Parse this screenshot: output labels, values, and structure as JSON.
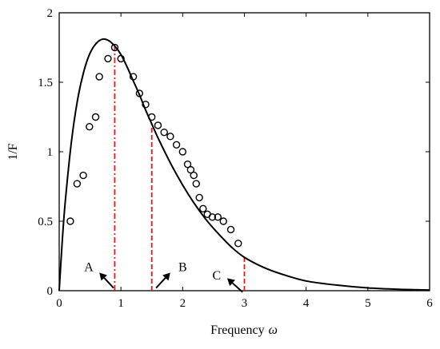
{
  "chart_data": {
    "type": "line",
    "xlabel": "Frequency",
    "xlabel_symbol": "ω",
    "ylabel": "1/F",
    "xlim": [
      0,
      6
    ],
    "ylim": [
      0,
      2
    ],
    "x_ticks": [
      0,
      1,
      2,
      3,
      4,
      5,
      6
    ],
    "x_tick_labels": [
      "0",
      "1",
      "2",
      "3",
      "4",
      "5",
      "6"
    ],
    "y_ticks": [
      0,
      0.5,
      1,
      1.5,
      2
    ],
    "y_tick_labels": [
      "0",
      "0.5",
      "1",
      "1.5",
      "2"
    ],
    "grid": false,
    "series": [
      {
        "style": "solid-line",
        "color": "#000000",
        "x": [
          0,
          0.05,
          0.1,
          0.2,
          0.3,
          0.4,
          0.5,
          0.6,
          0.7,
          0.8,
          0.9,
          1.0,
          1.1,
          1.2,
          1.3,
          1.4,
          1.5,
          1.6,
          1.8,
          2.0,
          2.2,
          2.4,
          2.6,
          2.8,
          3.0,
          3.3,
          3.6,
          4.0,
          4.5,
          5.0,
          5.5,
          6.0
        ],
        "y": [
          0,
          0.36,
          0.65,
          1.08,
          1.38,
          1.58,
          1.71,
          1.78,
          1.81,
          1.8,
          1.76,
          1.7,
          1.61,
          1.51,
          1.41,
          1.3,
          1.2,
          1.1,
          0.92,
          0.76,
          0.62,
          0.5,
          0.4,
          0.31,
          0.24,
          0.17,
          0.12,
          0.07,
          0.04,
          0.02,
          0.01,
          0.005
        ]
      },
      {
        "style": "open-circles",
        "color": "#000000",
        "x": [
          0.18,
          0.29,
          0.39,
          0.49,
          0.59,
          0.65,
          0.79,
          0.9,
          1.0,
          1.2,
          1.3,
          1.4,
          1.5,
          1.6,
          1.7,
          1.8,
          1.9,
          2.0,
          2.08,
          2.13,
          2.18,
          2.22,
          2.27,
          2.33,
          2.4,
          2.48,
          2.57,
          2.66,
          2.78,
          2.9
        ],
        "y": [
          0.5,
          0.77,
          0.83,
          1.18,
          1.25,
          1.54,
          1.67,
          1.75,
          1.67,
          1.54,
          1.42,
          1.34,
          1.25,
          1.19,
          1.14,
          1.11,
          1.05,
          1.0,
          0.91,
          0.87,
          0.83,
          0.77,
          0.67,
          0.59,
          0.55,
          0.53,
          0.53,
          0.5,
          0.44,
          0.34
        ]
      }
    ],
    "vertical_lines": [
      {
        "x": 0.9,
        "style": "dash-dot",
        "color": "#e8171c"
      },
      {
        "x": 1.5,
        "style": "dashed",
        "color": "#e8171c"
      },
      {
        "x": 3.0,
        "style": "dashed",
        "color": "#e8171c"
      }
    ],
    "annotations": [
      {
        "text": "A",
        "label_x": 0.48,
        "label_y": 0.17,
        "arrow_from": [
          0.88,
          0.02
        ],
        "arrow_to": [
          0.65,
          0.13
        ]
      },
      {
        "text": "B",
        "label_x": 2.0,
        "label_y": 0.17,
        "arrow_from": [
          1.57,
          0.02
        ],
        "arrow_to": [
          1.8,
          0.13
        ]
      },
      {
        "text": "C",
        "label_x": 2.55,
        "label_y": 0.11,
        "arrow_from": [
          2.97,
          -0.01
        ],
        "arrow_to": [
          2.72,
          0.09
        ]
      }
    ]
  }
}
